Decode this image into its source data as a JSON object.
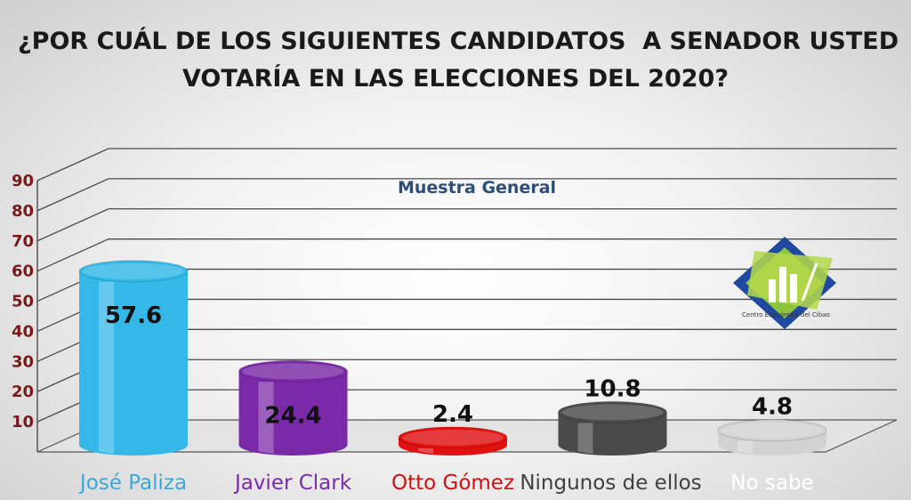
{
  "title_lines": [
    "¿POR CUÁL DE LOS SIGUIENTES CANDIDATOS  A SENADOR USTED",
    "VOTARÍA EN LAS ELECCIONES DEL 2020?"
  ],
  "logo_text": "Centro Económico del Cibao",
  "chart_data": {
    "type": "bar",
    "title": "¿POR CUÁL DE LOS SIGUIENTES CANDIDATOS  A SENADOR USTED VOTARÍA EN LAS ELECCIONES DEL 2020?",
    "subtitle": "Muestra General",
    "categories": [
      "José Paliza",
      "Javier Clark",
      "Otto Gómez",
      "Ningunos de ellos",
      "No sabe"
    ],
    "values": [
      57.6,
      24.4,
      2.4,
      10.8,
      4.8
    ],
    "value_labels": [
      "57.6",
      "24.4",
      "2.4",
      "10.8",
      "4.8"
    ],
    "colors": [
      "#33b8e8",
      "#7a2aa8",
      "#e01010",
      "#4a4a4a",
      "#d2d2d2"
    ],
    "category_label_colors": [
      "#3aa8d8",
      "#7a2aa8",
      "#d01010",
      "#404040",
      "#ffffff"
    ],
    "yticks": [
      10,
      20,
      30,
      40,
      50,
      60,
      70,
      80,
      90
    ],
    "ylim": [
      0,
      90
    ],
    "grid": true,
    "style": "3d-cylinder"
  }
}
